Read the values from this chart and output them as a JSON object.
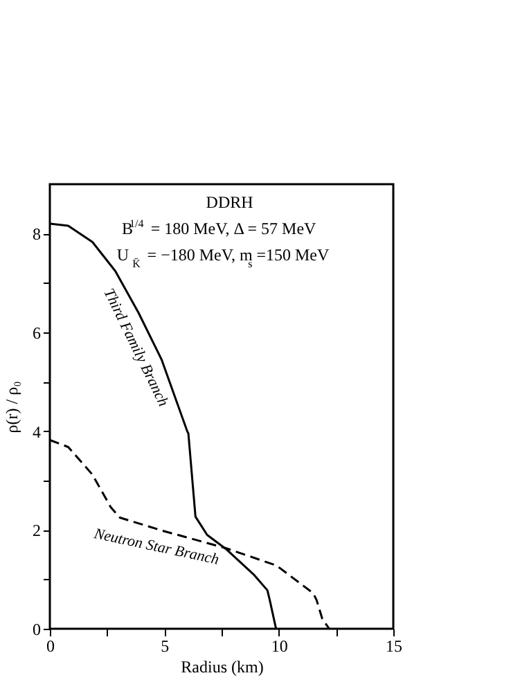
{
  "chart_data": {
    "type": "line",
    "annotations": [
      "DDRH",
      "B$^{1/4}$ = 180 MeV, Δ = 57 MeV",
      "U $_{K̄}$= −180 MeV, m$_{s}$ =150 MeV"
    ],
    "xlabel": "Radius (km)",
    "ylabel": "ρ(r) / ρ₀",
    "xlim": [
      0,
      15
    ],
    "ylim": [
      0,
      9
    ],
    "xticks": [
      0,
      {
        "value": 2.5,
        "label": null
      },
      5,
      {
        "value": 7.5,
        "label": null
      },
      10,
      {
        "value": 12.5,
        "label": null
      },
      15
    ],
    "yticks": [
      0,
      {
        "value": 1,
        "label": null
      },
      2,
      {
        "value": 3,
        "label": null
      },
      4,
      {
        "value": 5,
        "label": null
      },
      6,
      {
        "value": 7,
        "label": null
      },
      8
    ],
    "grid": false,
    "series": [
      {
        "name": "Third Family Branch",
        "color": "#000000",
        "line_style": "solid",
        "x": [
          0,
          0.8,
          1.86,
          2.86,
          3.87,
          4.88,
          6.0,
          6.05,
          6.36,
          6.87,
          7.68,
          8.9,
          9.5,
          9.6,
          9.87,
          9.9
        ],
        "values": [
          8.2,
          8.16,
          7.83,
          7.24,
          6.4,
          5.45,
          4.0,
          3.95,
          2.27,
          1.9,
          1.62,
          1.1,
          0.78,
          0.59,
          0.02,
          0
        ]
      },
      {
        "name": "Neutron Star Branch",
        "color": "#000000",
        "line_style": "dashed",
        "x": [
          0,
          0.8,
          1.86,
          2.66,
          3.06,
          4.88,
          7.7,
          9.9,
          11.5,
          11.65,
          11.9,
          12.2
        ],
        "values": [
          3.82,
          3.68,
          3.12,
          2.46,
          2.25,
          1.99,
          1.63,
          1.28,
          0.72,
          0.58,
          0.2,
          0
        ]
      }
    ]
  }
}
